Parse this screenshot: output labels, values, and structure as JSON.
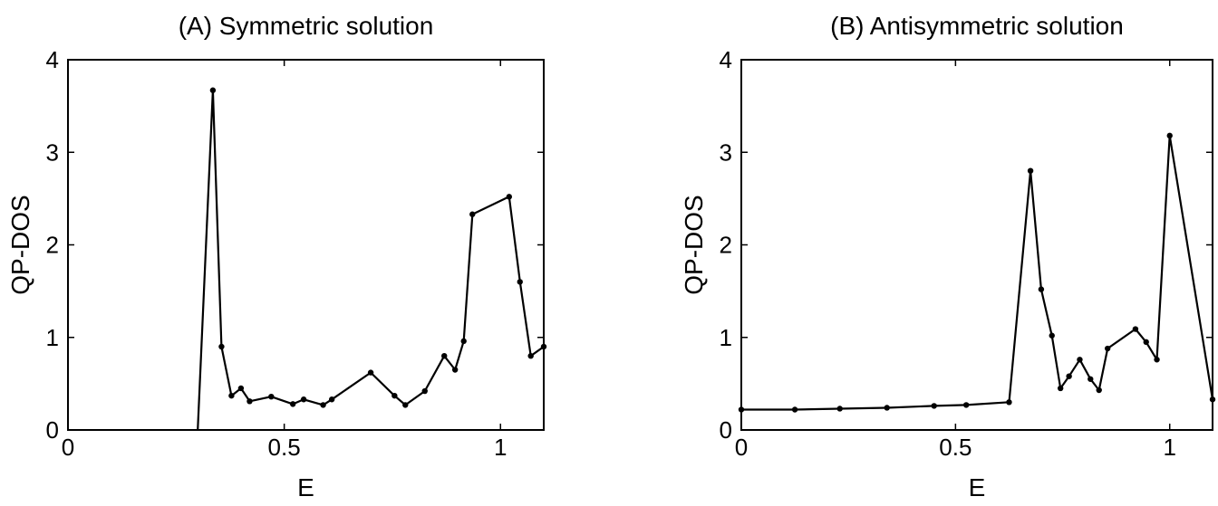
{
  "chart_data": [
    {
      "type": "line",
      "title": "(A) Symmetric solution",
      "xlabel": "E",
      "ylabel": "QP-DOS",
      "xlim": [
        0,
        1.1
      ],
      "ylim": [
        0,
        4
      ],
      "xticks": [
        0,
        0.5,
        1
      ],
      "xtick_labels": [
        "0",
        "0.5",
        "1"
      ],
      "yticks": [
        0,
        1,
        2,
        3,
        4
      ],
      "ytick_labels": [
        "0",
        "1",
        "2",
        "3",
        "4"
      ],
      "grid": false,
      "series": [
        {
          "marker": "dot",
          "x": [
            0.3,
            0.335,
            0.355,
            0.378,
            0.4,
            0.42,
            0.47,
            0.52,
            0.545,
            0.59,
            0.61,
            0.7,
            0.755,
            0.78,
            0.825,
            0.87,
            0.895,
            0.915,
            0.935,
            1.02,
            1.045,
            1.07,
            1.1
          ],
          "y": [
            0.0,
            3.67,
            0.9,
            0.37,
            0.45,
            0.31,
            0.36,
            0.28,
            0.33,
            0.27,
            0.33,
            0.62,
            0.37,
            0.27,
            0.42,
            0.8,
            0.65,
            0.96,
            2.33,
            2.52,
            1.6,
            0.8,
            0.9
          ],
          "markers": [
            false,
            true,
            true,
            true,
            true,
            true,
            true,
            true,
            true,
            true,
            true,
            true,
            true,
            true,
            true,
            true,
            true,
            true,
            true,
            true,
            true,
            true,
            true
          ]
        }
      ]
    },
    {
      "type": "line",
      "title": "(B) Antisymmetric solution",
      "xlabel": "E",
      "ylabel": "QP-DOS",
      "xlim": [
        0,
        1.1
      ],
      "ylim": [
        0,
        4
      ],
      "xticks": [
        0,
        0.5,
        1
      ],
      "xtick_labels": [
        "0",
        "0.5",
        "1"
      ],
      "yticks": [
        0,
        1,
        2,
        3,
        4
      ],
      "ytick_labels": [
        "0",
        "1",
        "2",
        "3",
        "4"
      ],
      "grid": false,
      "series": [
        {
          "marker": "dot",
          "x": [
            0.0,
            0.125,
            0.23,
            0.34,
            0.45,
            0.525,
            0.625,
            0.675,
            0.7,
            0.725,
            0.745,
            0.765,
            0.79,
            0.815,
            0.835,
            0.855,
            0.92,
            0.945,
            0.97,
            1.0,
            1.1
          ],
          "y": [
            0.22,
            0.22,
            0.23,
            0.24,
            0.26,
            0.27,
            0.3,
            2.8,
            1.52,
            1.02,
            0.45,
            0.58,
            0.76,
            0.55,
            0.43,
            0.88,
            1.09,
            0.95,
            0.76,
            3.18,
            0.33
          ],
          "markers": [
            true,
            true,
            true,
            true,
            true,
            true,
            true,
            true,
            true,
            true,
            true,
            true,
            true,
            true,
            true,
            true,
            true,
            true,
            true,
            true,
            true
          ]
        }
      ]
    }
  ]
}
